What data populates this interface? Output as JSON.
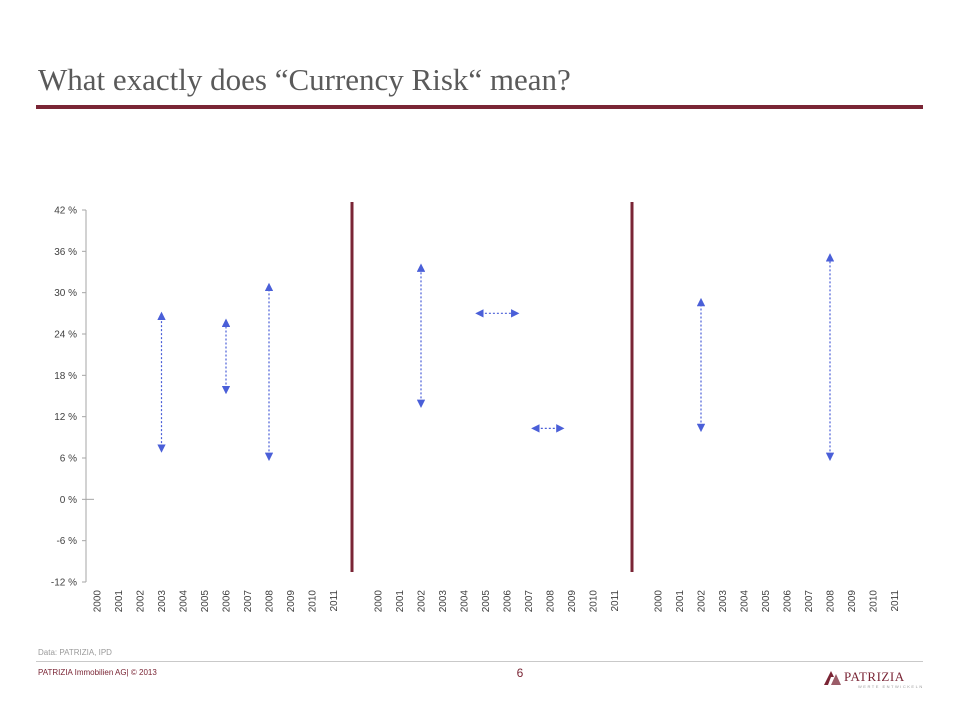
{
  "title": "What exactly does “Currency Risk“ mean?",
  "source": "Data: PATRIZIA, IPD",
  "footer": {
    "company": "PATRIZIA Immobilien AG| © 2013",
    "page": "6",
    "logo_text": "PATRIZIA",
    "logo_tagline": "WERTE ENTWICKELN"
  },
  "colors": {
    "accent": "#7a2535",
    "arrow": "#4a5fd8",
    "text": "#5a5a5a"
  },
  "chart_data": {
    "type": "range",
    "ylim": [
      -12,
      42
    ],
    "yticks": [
      -12,
      -6,
      0,
      6,
      12,
      18,
      24,
      30,
      36,
      42
    ],
    "ytick_labels": [
      "-12 %",
      "-6 %",
      "0 %",
      "6 %",
      "12 %",
      "18 %",
      "24 %",
      "30 %",
      "36 %",
      "42 %"
    ],
    "panels": [
      {
        "categories": [
          "2000",
          "2001",
          "2002",
          "2003",
          "2004",
          "2005",
          "2006",
          "2007",
          "2008",
          "2009",
          "2010",
          "2011"
        ],
        "vertical_arrows": [
          {
            "year": "2003",
            "low": 7,
            "high": 27
          },
          {
            "year": "2006",
            "low": 15.5,
            "high": 26
          },
          {
            "year": "2008",
            "low": 5.8,
            "high": 31.2
          }
        ],
        "horizontal_arrows": []
      },
      {
        "categories": [
          "2000",
          "2001",
          "2002",
          "2003",
          "2004",
          "2005",
          "2006",
          "2007",
          "2008",
          "2009",
          "2010",
          "2011"
        ],
        "vertical_arrows": [
          {
            "year": "2002",
            "low": 13.5,
            "high": 34
          }
        ],
        "horizontal_arrows": [
          {
            "from": "2004.6",
            "to": "2006.5",
            "y": 27
          },
          {
            "from": "2007.2",
            "to": "2008.6",
            "y": 10.3
          }
        ]
      },
      {
        "categories": [
          "2000",
          "2001",
          "2002",
          "2003",
          "2004",
          "2005",
          "2006",
          "2007",
          "2008",
          "2009",
          "2010",
          "2011"
        ],
        "vertical_arrows": [
          {
            "year": "2002",
            "low": 10,
            "high": 29
          },
          {
            "year": "2008",
            "low": 5.8,
            "high": 35.5
          }
        ],
        "horizontal_arrows": []
      }
    ]
  }
}
